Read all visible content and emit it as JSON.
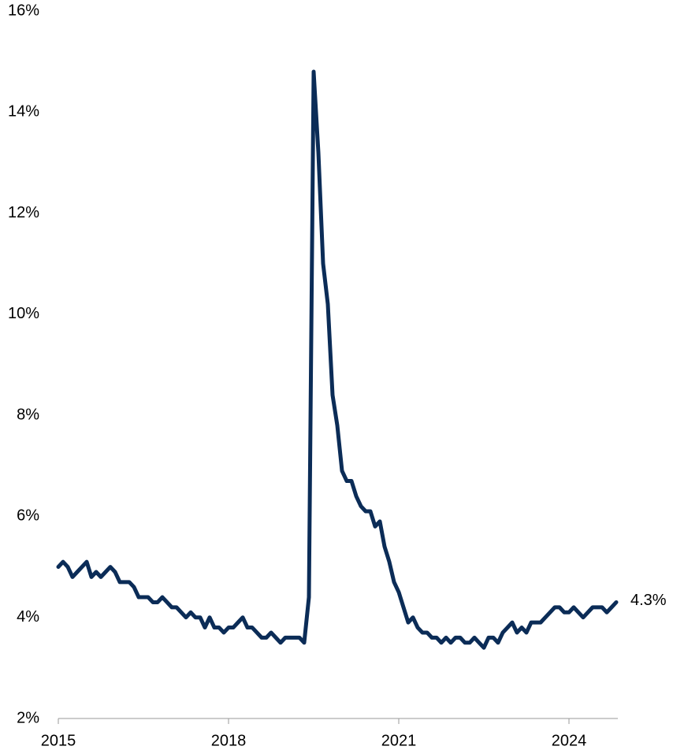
{
  "chart_data": {
    "type": "line",
    "x": [
      0,
      1,
      2,
      3,
      4,
      5,
      6,
      7,
      8,
      9,
      10,
      11,
      12,
      13,
      14,
      15,
      16,
      17,
      18,
      19,
      20,
      21,
      22,
      23,
      24,
      25,
      26,
      27,
      28,
      29,
      30,
      31,
      32,
      33,
      34,
      35,
      36,
      37,
      38,
      39,
      40,
      41,
      42,
      43,
      44,
      45,
      46,
      47,
      48,
      49,
      50,
      51,
      52,
      53,
      54,
      55,
      56,
      57,
      58,
      59,
      60,
      61,
      62,
      63,
      64,
      65,
      66,
      67,
      68,
      69,
      70,
      71,
      72,
      73,
      74,
      75,
      76,
      77,
      78,
      79,
      80,
      81,
      82,
      83,
      84,
      85,
      86,
      87,
      88,
      89,
      90,
      91,
      92,
      93,
      94,
      95,
      96,
      97,
      98,
      99,
      100,
      101,
      102,
      103,
      104,
      105,
      106,
      107,
      108,
      109,
      110,
      111,
      112,
      113,
      114,
      115,
      116,
      117,
      118
    ],
    "series": [
      {
        "color": "#0b2c57",
        "values": [
          5.0,
          5.1,
          5.0,
          4.8,
          4.9,
          5.0,
          5.1,
          4.8,
          4.9,
          4.8,
          4.9,
          5.0,
          4.9,
          4.7,
          4.7,
          4.7,
          4.6,
          4.4,
          4.4,
          4.4,
          4.3,
          4.3,
          4.4,
          4.3,
          4.2,
          4.2,
          4.1,
          4.0,
          4.1,
          4.0,
          4.0,
          3.8,
          4.0,
          3.8,
          3.8,
          3.7,
          3.8,
          3.8,
          3.9,
          4.0,
          3.8,
          3.8,
          3.7,
          3.6,
          3.6,
          3.7,
          3.6,
          3.5,
          3.6,
          3.6,
          3.6,
          3.6,
          3.5,
          4.4,
          14.8,
          13.2,
          11.0,
          10.2,
          8.4,
          7.8,
          6.9,
          6.7,
          6.7,
          6.4,
          6.2,
          6.1,
          6.1,
          5.8,
          5.9,
          5.4,
          5.1,
          4.7,
          4.5,
          4.2,
          3.9,
          4.0,
          3.8,
          3.7,
          3.7,
          3.6,
          3.6,
          3.5,
          3.6,
          3.5,
          3.6,
          3.6,
          3.5,
          3.5,
          3.6,
          3.5,
          3.4,
          3.6,
          3.6,
          3.5,
          3.7,
          3.8,
          3.9,
          3.7,
          3.8,
          3.7,
          3.9,
          3.9,
          3.9,
          4.0,
          4.1,
          4.2,
          4.2,
          4.1,
          4.1,
          4.2,
          4.1,
          4.0,
          4.1,
          4.2,
          4.2,
          4.2,
          4.1,
          4.2,
          4.3
        ]
      }
    ],
    "end_label": "4.3%",
    "xlim": [
      0,
      118
    ],
    "xticks": [
      {
        "value": 0,
        "label": "2015"
      },
      {
        "value": 36,
        "label": "2018"
      },
      {
        "value": 72,
        "label": "2021"
      },
      {
        "value": 108,
        "label": "2024"
      }
    ],
    "ylim": [
      2,
      16
    ],
    "yticks": [
      {
        "value": 2,
        "label": "2%"
      },
      {
        "value": 4,
        "label": "4%"
      },
      {
        "value": 6,
        "label": "6%"
      },
      {
        "value": 8,
        "label": "8%"
      },
      {
        "value": 10,
        "label": "10%"
      },
      {
        "value": 12,
        "label": "12%"
      },
      {
        "value": 14,
        "label": "14%"
      },
      {
        "value": 16,
        "label": "16%"
      }
    ],
    "grid": false
  }
}
